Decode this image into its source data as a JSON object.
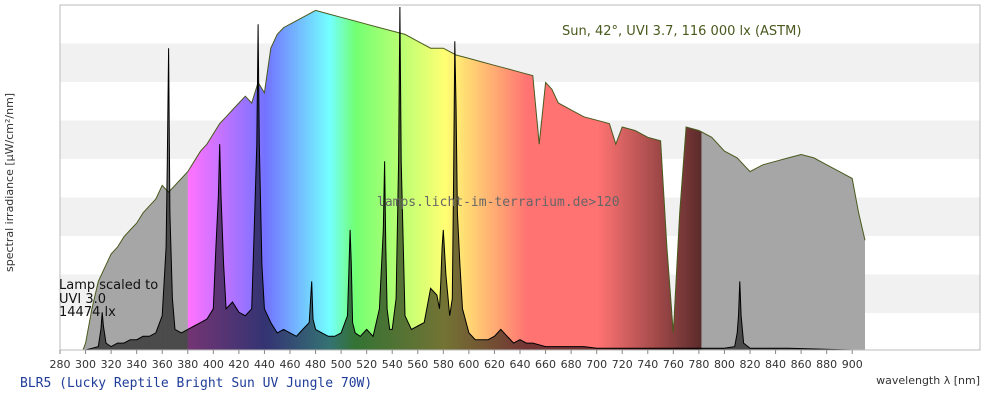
{
  "page": {
    "title": "BLR5 (Lucky Reptile Bright Sun UV Jungle 70W)"
  },
  "chart_data": {
    "type": "area",
    "xlabel": "wavelength λ [nm]",
    "ylabel": "spectral irradiance [µW/cm²/nm]",
    "xlim": [
      280,
      1000
    ],
    "ylim": [
      0,
      1
    ],
    "x_ticks": [
      280,
      300,
      320,
      340,
      360,
      380,
      400,
      420,
      440,
      460,
      480,
      500,
      520,
      540,
      560,
      580,
      600,
      620,
      640,
      660,
      680,
      700,
      720,
      740,
      760,
      780,
      800,
      820,
      840,
      860,
      880,
      900
    ],
    "grid": "horizontal bands",
    "annotations": {
      "sun_label": "Sun, 42°, UVI 3.7, 116 000 lx (ASTM)",
      "watermark": "lamps.licht-im-terrarium.de>120",
      "lamp_line1": "Lamp scaled to",
      "lamp_line2": "UVI 3.0",
      "lamp_line3": "14474 lx"
    },
    "series": [
      {
        "x": [
          298,
          300,
          305,
          310,
          315,
          320,
          325,
          330,
          335,
          340,
          345,
          350,
          355,
          360,
          365,
          370,
          375,
          380,
          385,
          390,
          395,
          400,
          405,
          410,
          415,
          420,
          425,
          430,
          435,
          440,
          445,
          450,
          455,
          460,
          470,
          480,
          490,
          500,
          510,
          520,
          530,
          540,
          550,
          560,
          570,
          580,
          590,
          600,
          610,
          620,
          630,
          640,
          650,
          655,
          660,
          665,
          670,
          680,
          690,
          700,
          710,
          715,
          720,
          730,
          740,
          750,
          755,
          760,
          765,
          770,
          780,
          790,
          800,
          810,
          820,
          830,
          840,
          850,
          860,
          870,
          880,
          890,
          900,
          905,
          910
        ],
        "y": [
          0.0,
          0.02,
          0.12,
          0.2,
          0.24,
          0.28,
          0.3,
          0.33,
          0.35,
          0.37,
          0.4,
          0.42,
          0.44,
          0.48,
          0.46,
          0.48,
          0.5,
          0.52,
          0.55,
          0.58,
          0.6,
          0.63,
          0.66,
          0.68,
          0.7,
          0.72,
          0.74,
          0.72,
          0.78,
          0.75,
          0.88,
          0.92,
          0.94,
          0.95,
          0.97,
          0.99,
          0.98,
          0.97,
          0.96,
          0.95,
          0.94,
          0.93,
          0.92,
          0.9,
          0.88,
          0.88,
          0.86,
          0.85,
          0.84,
          0.83,
          0.82,
          0.81,
          0.8,
          0.6,
          0.78,
          0.76,
          0.72,
          0.7,
          0.68,
          0.67,
          0.66,
          0.6,
          0.65,
          0.64,
          0.62,
          0.61,
          0.3,
          0.05,
          0.4,
          0.65,
          0.64,
          0.62,
          0.58,
          0.56,
          0.52,
          0.54,
          0.55,
          0.56,
          0.57,
          0.56,
          0.54,
          0.52,
          0.5,
          0.4,
          0.32
        ]
      },
      {
        "x": [
          298,
          300,
          305,
          310,
          312,
          313,
          314,
          316,
          320,
          325,
          330,
          335,
          340,
          345,
          350,
          355,
          360,
          363,
          364,
          365,
          366,
          368,
          370,
          375,
          380,
          385,
          390,
          395,
          400,
          402,
          404,
          405,
          406,
          408,
          410,
          415,
          420,
          425,
          430,
          432,
          434,
          435,
          436,
          438,
          440,
          445,
          450,
          455,
          460,
          465,
          470,
          475,
          477,
          478,
          480,
          485,
          490,
          495,
          500,
          505,
          507,
          508,
          509,
          511,
          515,
          520,
          525,
          530,
          533,
          534,
          535,
          536,
          538,
          540,
          543,
          545,
          546,
          547,
          550,
          555,
          560,
          565,
          570,
          575,
          577,
          578,
          579,
          580,
          582,
          585,
          587,
          588,
          589,
          590,
          591,
          593,
          595,
          600,
          605,
          610,
          615,
          620,
          625,
          630,
          635,
          640,
          645,
          650,
          660,
          670,
          680,
          690,
          700,
          710,
          750,
          800,
          808,
          810,
          811,
          812,
          813,
          815,
          820,
          850,
          900,
          910
        ],
        "y": [
          0.0,
          0.0,
          0.005,
          0.01,
          0.06,
          0.11,
          0.07,
          0.02,
          0.01,
          0.02,
          0.02,
          0.03,
          0.03,
          0.04,
          0.04,
          0.05,
          0.1,
          0.3,
          0.55,
          0.88,
          0.4,
          0.15,
          0.06,
          0.05,
          0.06,
          0.07,
          0.08,
          0.09,
          0.12,
          0.3,
          0.45,
          0.6,
          0.45,
          0.25,
          0.12,
          0.14,
          0.11,
          0.1,
          0.12,
          0.35,
          0.6,
          0.95,
          0.6,
          0.25,
          0.12,
          0.08,
          0.05,
          0.06,
          0.05,
          0.04,
          0.06,
          0.08,
          0.2,
          0.09,
          0.06,
          0.05,
          0.04,
          0.04,
          0.05,
          0.1,
          0.35,
          0.25,
          0.08,
          0.05,
          0.04,
          0.06,
          0.04,
          0.12,
          0.35,
          0.55,
          0.3,
          0.12,
          0.06,
          0.06,
          0.15,
          0.55,
          1.0,
          0.55,
          0.1,
          0.06,
          0.07,
          0.08,
          0.18,
          0.16,
          0.12,
          0.2,
          0.3,
          0.35,
          0.22,
          0.1,
          0.15,
          0.5,
          0.9,
          0.7,
          0.4,
          0.25,
          0.12,
          0.05,
          0.03,
          0.03,
          0.03,
          0.04,
          0.06,
          0.04,
          0.02,
          0.03,
          0.02,
          0.02,
          0.01,
          0.01,
          0.01,
          0.01,
          0.005,
          0.005,
          0.005,
          0.005,
          0.01,
          0.05,
          0.1,
          0.2,
          0.1,
          0.02,
          0.005,
          0.005,
          0.0,
          0.0
        ]
      }
    ]
  }
}
